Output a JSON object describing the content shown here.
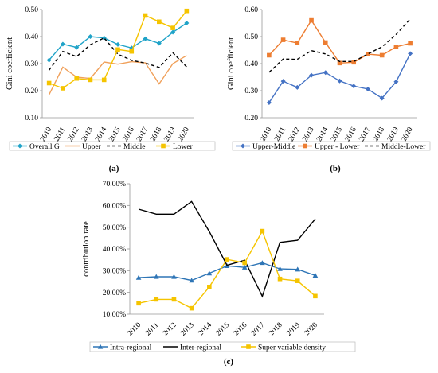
{
  "chart_data": [
    {
      "type": "line",
      "panel_label": "(a)",
      "ylabel": "Gini coefficient",
      "ylim": [
        0.1,
        0.5
      ],
      "yticks": [
        0.1,
        0.2,
        0.3,
        0.4,
        0.5
      ],
      "ytick_labels": [
        "0.10",
        "0.20",
        "0.30",
        "0.40",
        "0.50"
      ],
      "x": [
        "2010",
        "2011",
        "2012",
        "2013",
        "2014",
        "2015",
        "2016",
        "2017",
        "2018",
        "2019",
        "2020"
      ],
      "grid": false,
      "legend_position": "bottom",
      "series": [
        {
          "name": "Overall G",
          "color": "#1fa3c8",
          "marker": "diamond",
          "dash": "solid",
          "values": [
            0.313,
            0.372,
            0.36,
            0.4,
            0.395,
            0.371,
            0.358,
            0.392,
            0.375,
            0.416,
            0.45
          ]
        },
        {
          "name": "Upper",
          "color": "#f0a05a",
          "marker": "none",
          "dash": "solid",
          "values": [
            0.185,
            0.287,
            0.25,
            0.245,
            0.306,
            0.298,
            0.307,
            0.303,
            0.225,
            0.3,
            0.33
          ]
        },
        {
          "name": "Middle",
          "color": "#000000",
          "marker": "none",
          "dash": "dashed",
          "values": [
            0.276,
            0.345,
            0.326,
            0.37,
            0.395,
            0.335,
            0.312,
            0.302,
            0.286,
            0.34,
            0.288
          ]
        },
        {
          "name": "Lower",
          "color": "#f5c400",
          "marker": "square",
          "dash": "solid",
          "values": [
            0.228,
            0.209,
            0.245,
            0.24,
            0.24,
            0.352,
            0.345,
            0.478,
            0.455,
            0.432,
            0.495
          ]
        }
      ]
    },
    {
      "type": "line",
      "panel_label": "(b)",
      "ylabel": "Gini coefficient",
      "ylim": [
        0.2,
        0.6
      ],
      "yticks": [
        0.2,
        0.3,
        0.4,
        0.5,
        0.6
      ],
      "ytick_labels": [
        "0.20",
        "0.30",
        "0.40",
        "0.50",
        "0.60"
      ],
      "x": [
        "2010",
        "2011",
        "2012",
        "2013",
        "2014",
        "2015",
        "2016",
        "2017",
        "2018",
        "2019",
        "2020"
      ],
      "grid": false,
      "legend_position": "bottom",
      "series": [
        {
          "name": "Upper-Middle",
          "color": "#4472c4",
          "marker": "diamond",
          "dash": "solid",
          "values": [
            0.256,
            0.335,
            0.312,
            0.357,
            0.367,
            0.336,
            0.317,
            0.306,
            0.272,
            0.333,
            0.437
          ]
        },
        {
          "name": "Upper - Lower",
          "color": "#ed7d31",
          "marker": "square",
          "dash": "solid",
          "values": [
            0.431,
            0.488,
            0.476,
            0.56,
            0.478,
            0.402,
            0.405,
            0.435,
            0.431,
            0.462,
            0.475
          ]
        },
        {
          "name": "Middle-Lower",
          "color": "#000000",
          "marker": "none",
          "dash": "dashed",
          "values": [
            0.368,
            0.417,
            0.416,
            0.448,
            0.436,
            0.408,
            0.408,
            0.436,
            0.462,
            0.508,
            0.565
          ]
        }
      ]
    },
    {
      "type": "line",
      "panel_label": "(c)",
      "ylabel": "contribution rate",
      "ylim": [
        10,
        70
      ],
      "yticks": [
        10,
        20,
        30,
        40,
        50,
        60,
        70
      ],
      "ytick_labels": [
        "10.00%",
        "20.00%",
        "30.00%",
        "40.00%",
        "50.00%",
        "60.00%",
        "70.00%"
      ],
      "x": [
        "2010",
        "2011",
        "2012",
        "2013",
        "2014",
        "2015",
        "2016",
        "2017",
        "2018",
        "2019",
        "2020"
      ],
      "grid": false,
      "legend_position": "bottom",
      "series": [
        {
          "name": "Intra-regional",
          "color": "#2e75b6",
          "marker": "triangle",
          "dash": "solid",
          "values": [
            26.8,
            27.2,
            27.2,
            25.5,
            28.8,
            32.2,
            31.5,
            33.6,
            30.8,
            30.6,
            27.8
          ]
        },
        {
          "name": "Inter-regional",
          "color": "#000000",
          "marker": "none",
          "dash": "solid",
          "values": [
            58.3,
            56.0,
            56.0,
            61.8,
            48.0,
            32.5,
            34.8,
            18.2,
            43.0,
            44.0,
            53.8
          ]
        },
        {
          "name": "Super variable density",
          "color": "#f5c400",
          "marker": "square",
          "dash": "solid",
          "values": [
            15.0,
            16.8,
            16.8,
            12.7,
            22.5,
            35.2,
            33.6,
            48.2,
            26.2,
            25.3,
            18.3
          ]
        }
      ]
    }
  ]
}
